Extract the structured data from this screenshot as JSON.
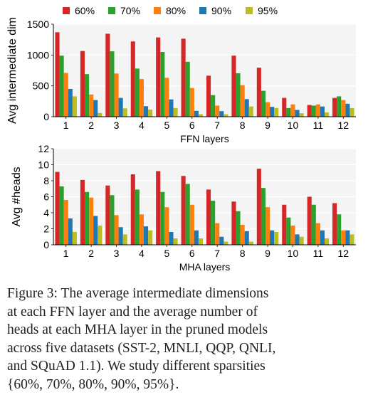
{
  "chart_data": [
    {
      "type": "bar",
      "ylabel": "Avg intermediate dim",
      "xlabel": "FFN layers",
      "categories": [
        "1",
        "2",
        "3",
        "4",
        "5",
        "6",
        "7",
        "8",
        "9",
        "10",
        "11",
        "12"
      ],
      "ylim": [
        0,
        1500
      ],
      "yticks": [
        0,
        500,
        1000,
        1500
      ],
      "grid": true,
      "legend": "top",
      "series": [
        {
          "name": "60%",
          "color": "#d62728",
          "values": [
            1370,
            1065,
            1345,
            1220,
            1285,
            1265,
            665,
            990,
            795,
            305,
            190,
            305
          ]
        },
        {
          "name": "70%",
          "color": "#2ca02c",
          "values": [
            990,
            690,
            1060,
            780,
            1050,
            890,
            350,
            705,
            420,
            140,
            180,
            330
          ]
        },
        {
          "name": "80%",
          "color": "#ff7f0e",
          "values": [
            710,
            360,
            700,
            610,
            630,
            465,
            180,
            510,
            235,
            200,
            200,
            270
          ]
        },
        {
          "name": "90%",
          "color": "#1f77b4",
          "values": [
            450,
            270,
            305,
            170,
            280,
            95,
            90,
            285,
            160,
            110,
            165,
            210
          ]
        },
        {
          "name": "95%",
          "color": "#bcbd22",
          "values": [
            330,
            60,
            135,
            115,
            140,
            40,
            40,
            165,
            140,
            55,
            70,
            140
          ]
        }
      ]
    },
    {
      "type": "bar",
      "ylabel": "Avg #heads",
      "xlabel": "MHA layers",
      "categories": [
        "1",
        "2",
        "3",
        "4",
        "5",
        "6",
        "7",
        "8",
        "9",
        "10",
        "11",
        "12"
      ],
      "ylim": [
        0,
        12
      ],
      "yticks": [
        0,
        2,
        4,
        6,
        8,
        10,
        12
      ],
      "grid": true,
      "series": [
        {
          "name": "60%",
          "color": "#d62728",
          "values": [
            9.1,
            8.1,
            7.4,
            8.8,
            9.2,
            8.6,
            6.9,
            5.4,
            9.5,
            5.0,
            6.0,
            5.2
          ]
        },
        {
          "name": "70%",
          "color": "#2ca02c",
          "values": [
            7.3,
            6.6,
            6.2,
            6.9,
            6.6,
            7.6,
            5.5,
            4.2,
            7.1,
            3.4,
            5.0,
            3.8
          ]
        },
        {
          "name": "80%",
          "color": "#ff7f0e",
          "values": [
            5.6,
            5.9,
            3.7,
            3.8,
            4.7,
            5.0,
            2.7,
            2.5,
            4.7,
            2.4,
            2.7,
            1.8
          ]
        },
        {
          "name": "90%",
          "color": "#1f77b4",
          "values": [
            3.3,
            3.6,
            2.2,
            2.3,
            1.6,
            1.8,
            1.0,
            1.7,
            1.8,
            1.3,
            1.8,
            1.8
          ]
        },
        {
          "name": "95%",
          "color": "#bcbd22",
          "values": [
            1.6,
            2.4,
            1.3,
            1.8,
            0.8,
            0.8,
            0.4,
            0.4,
            1.6,
            1.0,
            0.8,
            1.3
          ]
        }
      ]
    }
  ],
  "caption": {
    "line1": "Figure 3:  The average intermediate dimensions",
    "line2": "at each FFN layer and the average number of",
    "line3": "heads at each MHA layer in the pruned models",
    "line4": "across five datasets (SST-2, MNLI, QQP, QNLI,",
    "line5": "and SQuAD 1.1).   We study different sparsities",
    "line6": "{60%, 70%, 80%, 90%, 95%}."
  }
}
